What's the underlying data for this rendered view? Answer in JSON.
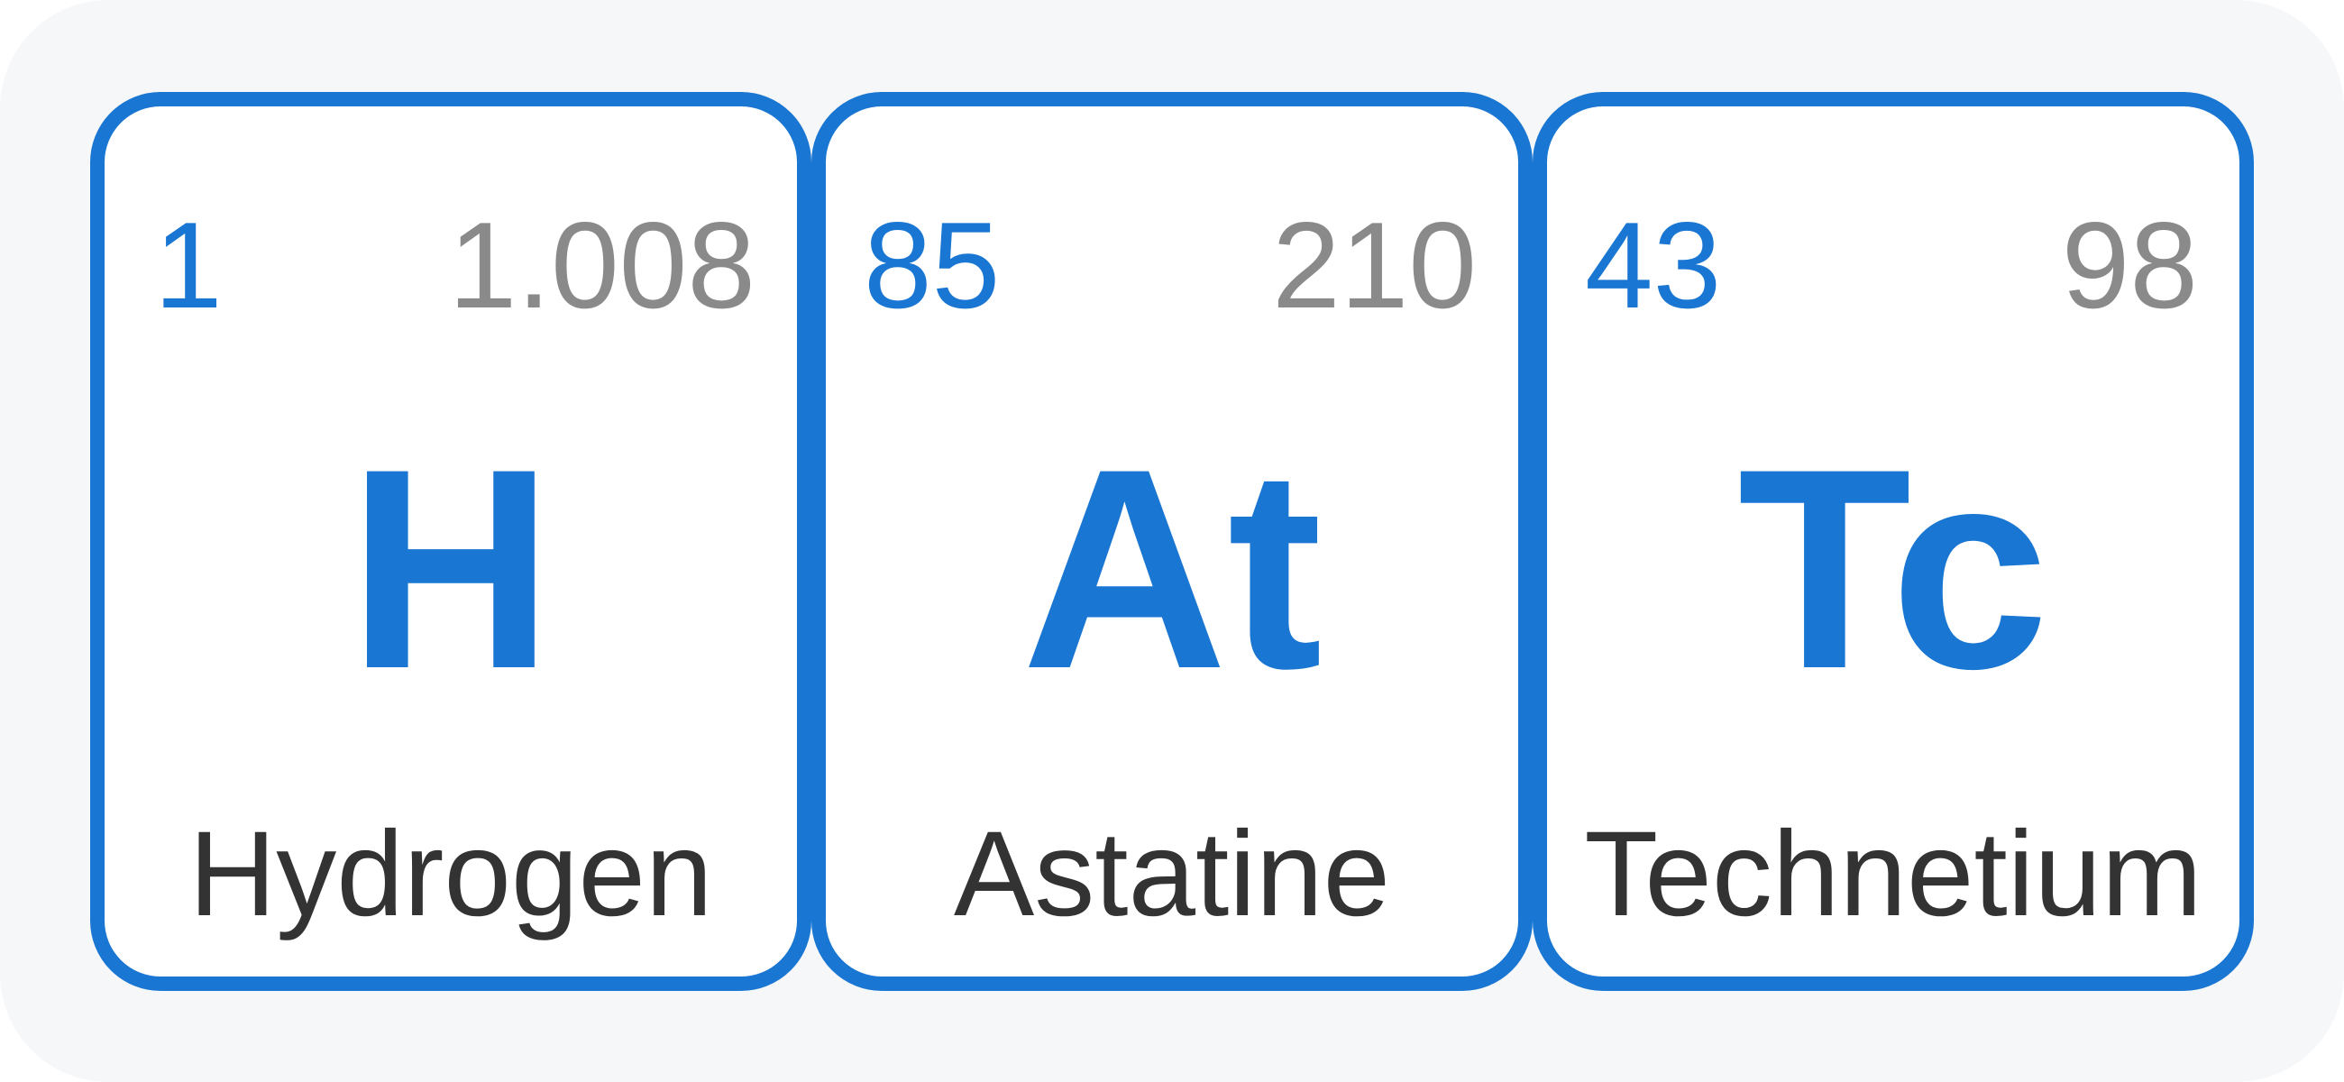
{
  "elements": [
    {
      "atomic_number": "1",
      "atomic_mass": "1.008",
      "symbol": "H",
      "name": "Hydrogen"
    },
    {
      "atomic_number": "85",
      "atomic_mass": "210",
      "symbol": "At",
      "name": "Astatine"
    },
    {
      "atomic_number": "43",
      "atomic_mass": "98",
      "symbol": "Tc",
      "name": "Technetium"
    }
  ],
  "colors": {
    "accent": "#1976d2",
    "mass_text": "#8a8a8a",
    "name_text": "#333333",
    "background": "#f6f7f9"
  }
}
